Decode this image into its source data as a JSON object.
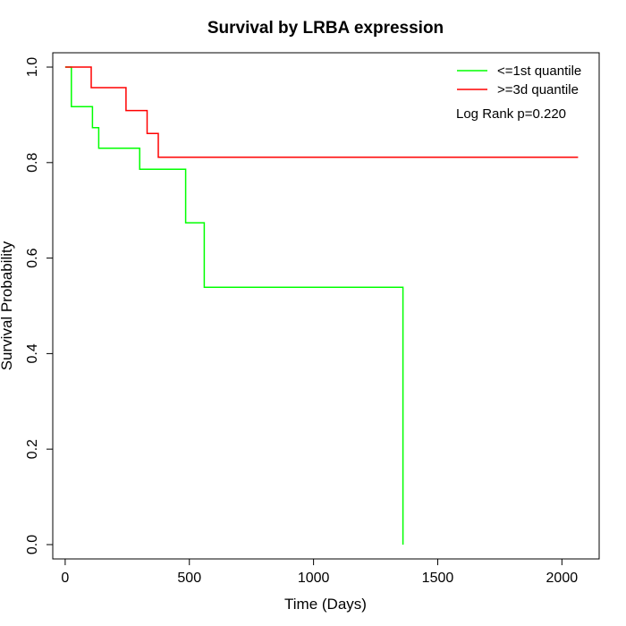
{
  "chart_data": {
    "type": "line",
    "title": "Survival by LRBA expression",
    "xlabel": "Time (Days)",
    "ylabel": "Survival Probability",
    "xlim": [
      -50,
      2150
    ],
    "ylim": [
      -0.03,
      1.03
    ],
    "x_ticks": [
      0,
      500,
      1000,
      1500,
      2000
    ],
    "y_ticks": [
      0.0,
      0.2,
      0.4,
      0.6,
      0.8,
      1.0
    ],
    "x_tick_labels": [
      "0",
      "500",
      "1000",
      "1500",
      "2000"
    ],
    "y_tick_labels": [
      "0.0",
      "0.2",
      "0.4",
      "0.6",
      "0.8",
      "1.0"
    ],
    "grid": false,
    "legend_position": "top-right",
    "annotation": "Log Rank p=0.220",
    "series": [
      {
        "name": "<=1st quantile",
        "color": "#00ff00",
        "steps": [
          [
            0,
            1.0
          ],
          [
            25,
            1.0
          ],
          [
            25,
            0.917
          ],
          [
            110,
            0.917
          ],
          [
            110,
            0.873
          ],
          [
            135,
            0.873
          ],
          [
            135,
            0.83
          ],
          [
            300,
            0.83
          ],
          [
            300,
            0.786
          ],
          [
            485,
            0.786
          ],
          [
            485,
            0.674
          ],
          [
            560,
            0.674
          ],
          [
            560,
            0.539
          ],
          [
            1360,
            0.539
          ],
          [
            1360,
            0.0
          ]
        ]
      },
      {
        "name": ">=3d quantile",
        "color": "#ff0000",
        "steps": [
          [
            0,
            1.0
          ],
          [
            105,
            1.0
          ],
          [
            105,
            0.957
          ],
          [
            245,
            0.957
          ],
          [
            245,
            0.909
          ],
          [
            330,
            0.909
          ],
          [
            330,
            0.861
          ],
          [
            375,
            0.861
          ],
          [
            375,
            0.811
          ],
          [
            2065,
            0.811
          ]
        ]
      }
    ]
  }
}
